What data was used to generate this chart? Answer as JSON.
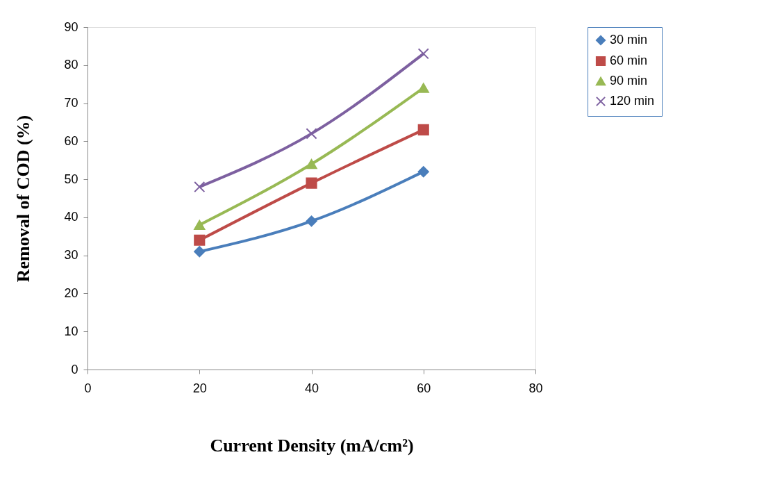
{
  "chart_data": {
    "type": "line",
    "xlabel": "Current Density (mA/cm²)",
    "ylabel": "Removal of COD (%)",
    "x": [
      20,
      40,
      60
    ],
    "xlim": [
      0,
      80
    ],
    "xticks": [
      0,
      20,
      40,
      60,
      80
    ],
    "ylim": [
      0,
      90
    ],
    "yticks": [
      0,
      10,
      20,
      30,
      40,
      50,
      60,
      70,
      80,
      90
    ],
    "grid": false,
    "legend": "top right",
    "line_style": "solid",
    "series": [
      {
        "name": "30 min",
        "color": "#4a7ebb",
        "marker": "diamond",
        "values": [
          31,
          39,
          52
        ]
      },
      {
        "name": "60 min",
        "color": "#be4b48",
        "marker": "square",
        "values": [
          34,
          49,
          63
        ]
      },
      {
        "name": "90 min",
        "color": "#98b954",
        "marker": "triangle",
        "values": [
          38,
          54,
          74
        ]
      },
      {
        "name": "120 min",
        "color": "#7d60a0",
        "marker": "cross",
        "values": [
          48,
          62,
          83
        ]
      }
    ]
  }
}
